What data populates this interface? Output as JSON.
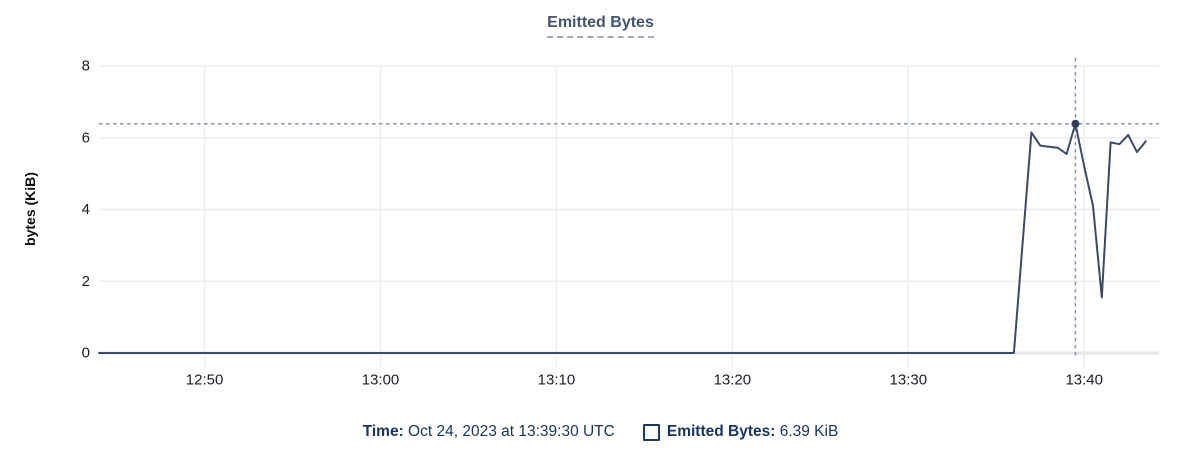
{
  "title": {
    "text": "Emitted Bytes"
  },
  "y_axis": {
    "label": "bytes (KiB)"
  },
  "footer": {
    "time_label": "Time:",
    "time_value": " Oct 24, 2023 at 13:39:30 UTC",
    "series_label": "Emitted Bytes:",
    "series_value": " 6.39 KiB"
  },
  "colors": {
    "line": "#3c4b63",
    "marker": "#2c3e57",
    "crosshair": "#8295a9",
    "grid": "#ecedee",
    "baseline": "#e3e5e8",
    "tick_text": "#1b1f27",
    "legend_navy": "#1d3a5f",
    "title_navy": "#44546e"
  },
  "chart_data": {
    "type": "line",
    "title": "Emitted Bytes",
    "xlabel": "",
    "ylabel": "bytes (KiB)",
    "ylim": [
      0,
      8
    ],
    "y_ticks": [
      0,
      2,
      4,
      6,
      8
    ],
    "x_domain": [
      "12:44:00",
      "13:44:15"
    ],
    "x_ticks": [
      {
        "time": "12:50:00",
        "label": "12:50"
      },
      {
        "time": "13:00:00",
        "label": "13:00"
      },
      {
        "time": "13:10:00",
        "label": "13:10"
      },
      {
        "time": "13:20:00",
        "label": "13:20"
      },
      {
        "time": "13:30:00",
        "label": "13:30"
      },
      {
        "time": "13:40:00",
        "label": "13:40"
      }
    ],
    "grid": true,
    "legend_position": "bottom",
    "series": [
      {
        "name": "Emitted Bytes",
        "unit": "KiB",
        "points": [
          [
            "12:44:00",
            0
          ],
          [
            "13:36:00",
            0
          ],
          [
            "13:37:00",
            6.15
          ],
          [
            "13:37:30",
            5.78
          ],
          [
            "13:38:00",
            5.75
          ],
          [
            "13:38:30",
            5.72
          ],
          [
            "13:39:00",
            5.55
          ],
          [
            "13:39:30",
            6.39
          ],
          [
            "13:40:00",
            5.2
          ],
          [
            "13:40:30",
            4.1
          ],
          [
            "13:41:00",
            1.55
          ],
          [
            "13:41:30",
            5.87
          ],
          [
            "13:42:00",
            5.82
          ],
          [
            "13:42:30",
            6.08
          ],
          [
            "13:43:00",
            5.6
          ],
          [
            "13:43:30",
            5.9
          ]
        ]
      }
    ],
    "crosshair": {
      "time": "13:39:30",
      "value": 6.39
    }
  }
}
